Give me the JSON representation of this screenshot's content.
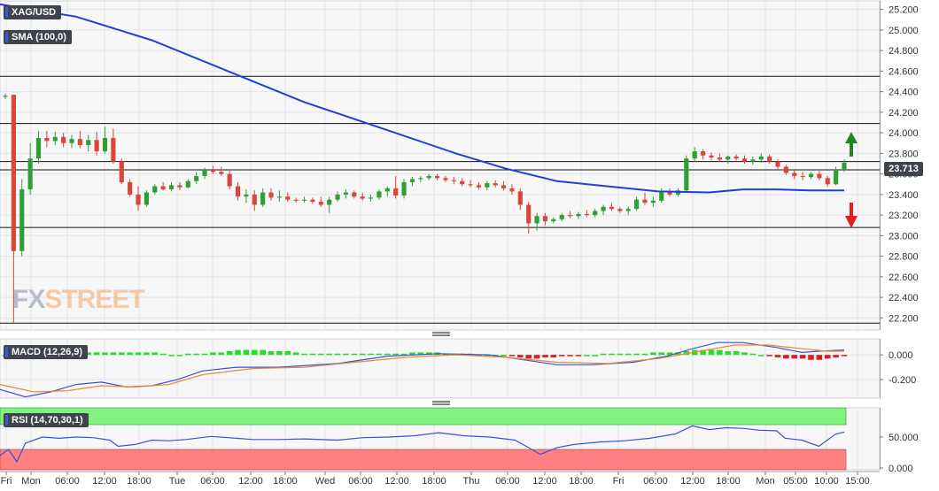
{
  "instrument": "XAG/USD",
  "price_tag": "23.713",
  "colors": {
    "up": "#2e9e35",
    "down": "#d9463a",
    "sma": "#1f3fd6",
    "macd_line": "#3355dd",
    "signal_line": "#ee8833",
    "rsi_line": "#3355dd",
    "rsi_overbought": "#7ff27f",
    "rsi_oversold": "#ff8080",
    "arrow_up": "#1e8a1e",
    "arrow_down": "#e41d1d"
  },
  "panels": {
    "price": {
      "label": "SMA (100,0)"
    },
    "macd": {
      "label": "MACD (12,26,9)"
    },
    "rsi": {
      "label": "RSI (14,70,30,1)"
    }
  },
  "chart_data": [
    {
      "type": "candlestick",
      "title": "XAG/USD",
      "ylim": [
        22.1,
        25.3
      ],
      "y_ticks": [
        "25.200",
        "25.000",
        "24.800",
        "24.600",
        "24.400",
        "24.200",
        "24.000",
        "23.800",
        "23.600",
        "23.400",
        "23.200",
        "23.000",
        "22.800",
        "22.600",
        "22.400",
        "22.200"
      ],
      "x_ticks": [
        "Fri",
        "Mon",
        "06:00",
        "12:00",
        "18:00",
        "Tue",
        "06:00",
        "12:00",
        "18:00",
        "Wed",
        "06:00",
        "12:00",
        "18:00",
        "Thu",
        "06:00",
        "12:00",
        "18:00",
        "Fri",
        "06:00",
        "12:00",
        "18:00",
        "Mon",
        "05:00",
        "10:00",
        "15:00"
      ],
      "last_price": 23.713,
      "horizontal_levels": [
        24.55,
        24.09,
        23.72,
        23.64,
        23.08,
        22.15
      ],
      "candles_ohlc": [
        [
          24.35,
          24.38,
          24.33,
          24.36
        ],
        [
          24.37,
          24.37,
          22.15,
          22.85
        ],
        [
          22.85,
          23.55,
          22.8,
          23.45
        ],
        [
          23.45,
          23.9,
          23.4,
          23.75
        ],
        [
          23.75,
          24.02,
          23.7,
          23.95
        ],
        [
          23.95,
          24.02,
          23.86,
          23.92
        ],
        [
          23.92,
          24.01,
          23.88,
          23.96
        ],
        [
          23.96,
          24.0,
          23.86,
          23.9
        ],
        [
          23.9,
          23.98,
          23.85,
          23.94
        ],
        [
          23.94,
          24.02,
          23.85,
          23.88
        ],
        [
          23.88,
          23.98,
          23.82,
          23.93
        ],
        [
          23.93,
          24.01,
          23.78,
          23.82
        ],
        [
          23.82,
          24.06,
          23.8,
          23.95
        ],
        [
          23.95,
          24.04,
          23.7,
          23.72
        ],
        [
          23.72,
          23.75,
          23.5,
          23.52
        ],
        [
          23.52,
          23.55,
          23.38,
          23.4
        ],
        [
          23.4,
          23.48,
          23.24,
          23.3
        ],
        [
          23.3,
          23.44,
          23.28,
          23.42
        ],
        [
          23.42,
          23.5,
          23.4,
          23.48
        ],
        [
          23.48,
          23.52,
          23.44,
          23.45
        ],
        [
          23.45,
          23.52,
          23.43,
          23.49
        ],
        [
          23.49,
          23.52,
          23.44,
          23.47
        ],
        [
          23.47,
          23.55,
          23.46,
          23.53
        ],
        [
          23.53,
          23.62,
          23.5,
          23.58
        ],
        [
          23.58,
          23.66,
          23.55,
          23.64
        ],
        [
          23.64,
          23.68,
          23.6,
          23.62
        ],
        [
          23.62,
          23.67,
          23.58,
          23.6
        ],
        [
          23.6,
          23.64,
          23.45,
          23.48
        ],
        [
          23.48,
          23.52,
          23.34,
          23.38
        ],
        [
          23.38,
          23.45,
          23.32,
          23.4
        ],
        [
          23.4,
          23.44,
          23.24,
          23.3
        ],
        [
          23.3,
          23.46,
          23.28,
          23.42
        ],
        [
          23.42,
          23.46,
          23.34,
          23.37
        ],
        [
          23.37,
          23.44,
          23.33,
          23.38
        ],
        [
          23.38,
          23.42,
          23.33,
          23.35
        ],
        [
          23.35,
          23.37,
          23.32,
          23.34
        ],
        [
          23.34,
          23.38,
          23.32,
          23.35
        ],
        [
          23.35,
          23.37,
          23.31,
          23.33
        ],
        [
          23.33,
          23.38,
          23.28,
          23.3
        ],
        [
          23.3,
          23.38,
          23.22,
          23.35
        ],
        [
          23.35,
          23.43,
          23.33,
          23.4
        ],
        [
          23.4,
          23.45,
          23.36,
          23.42
        ],
        [
          23.42,
          23.44,
          23.36,
          23.38
        ],
        [
          23.38,
          23.42,
          23.34,
          23.36
        ],
        [
          23.36,
          23.4,
          23.33,
          23.37
        ],
        [
          23.37,
          23.45,
          23.35,
          23.43
        ],
        [
          23.43,
          23.48,
          23.38,
          23.46
        ],
        [
          23.46,
          23.58,
          23.36,
          23.39
        ],
        [
          23.39,
          23.55,
          23.36,
          23.52
        ],
        [
          23.52,
          23.57,
          23.48,
          23.55
        ],
        [
          23.55,
          23.58,
          23.52,
          23.56
        ],
        [
          23.56,
          23.6,
          23.54,
          23.58
        ],
        [
          23.58,
          23.6,
          23.54,
          23.56
        ],
        [
          23.56,
          23.58,
          23.52,
          23.54
        ],
        [
          23.54,
          23.57,
          23.5,
          23.53
        ],
        [
          23.53,
          23.56,
          23.48,
          23.5
        ],
        [
          23.5,
          23.54,
          23.47,
          23.49
        ],
        [
          23.49,
          23.52,
          23.45,
          23.47
        ],
        [
          23.47,
          23.53,
          23.44,
          23.51
        ],
        [
          23.51,
          23.54,
          23.47,
          23.49
        ],
        [
          23.49,
          23.53,
          23.44,
          23.46
        ],
        [
          23.46,
          23.5,
          23.4,
          23.43
        ],
        [
          23.43,
          23.46,
          23.25,
          23.3
        ],
        [
          23.3,
          23.33,
          23.02,
          23.12
        ],
        [
          23.12,
          23.22,
          23.05,
          23.19
        ],
        [
          23.19,
          23.22,
          23.1,
          23.14
        ],
        [
          23.14,
          23.18,
          23.12,
          23.16
        ],
        [
          23.16,
          23.22,
          23.14,
          23.2
        ],
        [
          23.2,
          23.24,
          23.17,
          23.19
        ],
        [
          23.19,
          23.23,
          23.16,
          23.21
        ],
        [
          23.21,
          23.25,
          23.18,
          23.2
        ],
        [
          23.2,
          23.26,
          23.18,
          23.24
        ],
        [
          23.24,
          23.3,
          23.2,
          23.28
        ],
        [
          23.28,
          23.32,
          23.24,
          23.26
        ],
        [
          23.26,
          23.28,
          23.22,
          23.24
        ],
        [
          23.24,
          23.28,
          23.2,
          23.26
        ],
        [
          23.26,
          23.38,
          23.24,
          23.35
        ],
        [
          23.35,
          23.42,
          23.3,
          23.32
        ],
        [
          23.32,
          23.38,
          23.28,
          23.34
        ],
        [
          23.34,
          23.46,
          23.32,
          23.42
        ],
        [
          23.42,
          23.46,
          23.38,
          23.4
        ],
        [
          23.4,
          23.46,
          23.38,
          23.44
        ],
        [
          23.44,
          23.78,
          23.42,
          23.75
        ],
        [
          23.75,
          23.86,
          23.72,
          23.82
        ],
        [
          23.82,
          23.84,
          23.74,
          23.78
        ],
        [
          23.78,
          23.81,
          23.73,
          23.76
        ],
        [
          23.76,
          23.8,
          23.72,
          23.74
        ],
        [
          23.74,
          23.78,
          23.7,
          23.77
        ],
        [
          23.77,
          23.79,
          23.73,
          23.75
        ],
        [
          23.75,
          23.78,
          23.7,
          23.72
        ],
        [
          23.72,
          23.77,
          23.69,
          23.74
        ],
        [
          23.74,
          23.8,
          23.71,
          23.77
        ],
        [
          23.77,
          23.79,
          23.7,
          23.72
        ],
        [
          23.72,
          23.74,
          23.64,
          23.67
        ],
        [
          23.67,
          23.69,
          23.59,
          23.61
        ],
        [
          23.61,
          23.64,
          23.55,
          23.58
        ],
        [
          23.58,
          23.62,
          23.54,
          23.57
        ],
        [
          23.57,
          23.62,
          23.55,
          23.6
        ],
        [
          23.6,
          23.63,
          23.54,
          23.56
        ],
        [
          23.56,
          23.58,
          23.48,
          23.5
        ],
        [
          23.5,
          23.67,
          23.49,
          23.64
        ],
        [
          23.64,
          23.74,
          23.62,
          23.71
        ]
      ],
      "sma_100": [
        [
          0,
          25.25
        ],
        [
          0.09,
          25.13
        ],
        [
          0.18,
          24.9
        ],
        [
          0.27,
          24.6
        ],
        [
          0.36,
          24.3
        ],
        [
          0.45,
          24.05
        ],
        [
          0.54,
          23.8
        ],
        [
          0.6,
          23.65
        ],
        [
          0.66,
          23.53
        ],
        [
          0.72,
          23.48
        ],
        [
          0.78,
          23.43
        ],
        [
          0.84,
          23.42
        ],
        [
          0.88,
          23.45
        ],
        [
          0.92,
          23.45
        ],
        [
          0.96,
          23.44
        ],
        [
          1.0,
          23.44
        ]
      ]
    },
    {
      "type": "macd",
      "title": "MACD (12,26,9)",
      "ylim": [
        -0.35,
        0.13
      ],
      "y_ticks": [
        "0.000",
        "-0.200"
      ],
      "histogram": [
        0.0,
        0.01,
        0.01,
        0.02,
        0.02,
        0.02,
        0.02,
        0.02,
        0.02,
        0.02,
        0.02,
        0.02,
        0.02,
        0.02,
        0.02,
        0.02,
        0.02,
        0.02,
        0.02,
        0.01,
        0.0,
        0.0,
        0.01,
        0.01,
        0.01,
        0.02,
        0.02,
        0.03,
        0.04,
        0.04,
        0.04,
        0.04,
        0.03,
        0.03,
        0.03,
        0.02,
        0.01,
        0.01,
        0.01,
        0.01,
        0.01,
        0.01,
        0.01,
        0.01,
        0.01,
        0.01,
        0.01,
        0.01,
        0.01,
        0.02,
        0.02,
        0.02,
        0.02,
        0.01,
        0.01,
        0.01,
        0.01,
        0.0,
        0.0,
        0.0,
        0.0,
        -0.01,
        -0.02,
        -0.03,
        -0.03,
        -0.02,
        -0.02,
        -0.01,
        -0.01,
        -0.01,
        0.0,
        0.0,
        0.01,
        0.01,
        0.01,
        0.01,
        0.01,
        0.01,
        0.02,
        0.02,
        0.02,
        0.02,
        0.03,
        0.04,
        0.04,
        0.04,
        0.04,
        0.03,
        0.03,
        0.02,
        0.01,
        0.0,
        -0.01,
        -0.02,
        -0.03,
        -0.03,
        -0.03,
        -0.04,
        -0.04,
        -0.03,
        -0.02,
        -0.01
      ],
      "macd": [
        [
          0,
          -0.28
        ],
        [
          0.03,
          -0.34
        ],
        [
          0.06,
          -0.3
        ],
        [
          0.09,
          -0.24
        ],
        [
          0.12,
          -0.22
        ],
        [
          0.15,
          -0.26
        ],
        [
          0.18,
          -0.25
        ],
        [
          0.21,
          -0.2
        ],
        [
          0.24,
          -0.13
        ],
        [
          0.28,
          -0.1
        ],
        [
          0.33,
          -0.1
        ],
        [
          0.4,
          -0.07
        ],
        [
          0.46,
          -0.01
        ],
        [
          0.52,
          0.01
        ],
        [
          0.58,
          0.0
        ],
        [
          0.62,
          -0.04
        ],
        [
          0.66,
          -0.08
        ],
        [
          0.7,
          -0.08
        ],
        [
          0.75,
          -0.06
        ],
        [
          0.79,
          -0.01
        ],
        [
          0.82,
          0.05
        ],
        [
          0.85,
          0.1
        ],
        [
          0.88,
          0.1
        ],
        [
          0.92,
          0.06
        ],
        [
          0.95,
          0.02
        ],
        [
          0.97,
          0.03
        ],
        [
          1.0,
          0.04
        ]
      ],
      "signal": [
        [
          0,
          -0.24
        ],
        [
          0.04,
          -0.3
        ],
        [
          0.08,
          -0.29
        ],
        [
          0.12,
          -0.25
        ],
        [
          0.16,
          -0.26
        ],
        [
          0.2,
          -0.24
        ],
        [
          0.24,
          -0.16
        ],
        [
          0.3,
          -0.11
        ],
        [
          0.36,
          -0.1
        ],
        [
          0.42,
          -0.06
        ],
        [
          0.48,
          -0.02
        ],
        [
          0.54,
          0.0
        ],
        [
          0.6,
          -0.02
        ],
        [
          0.66,
          -0.06
        ],
        [
          0.72,
          -0.07
        ],
        [
          0.78,
          -0.03
        ],
        [
          0.83,
          0.03
        ],
        [
          0.87,
          0.08
        ],
        [
          0.91,
          0.08
        ],
        [
          0.95,
          0.05
        ],
        [
          0.98,
          0.03
        ],
        [
          1.0,
          0.03
        ]
      ]
    },
    {
      "type": "rsi",
      "title": "RSI (14,70,30,1)",
      "ylim": [
        0,
        100
      ],
      "y_ticks": [
        "50.000",
        "0.000"
      ],
      "overbought": 70,
      "oversold": 30,
      "values": [
        [
          0,
          20
        ],
        [
          0.01,
          30
        ],
        [
          0.02,
          10
        ],
        [
          0.03,
          40
        ],
        [
          0.05,
          50
        ],
        [
          0.07,
          48
        ],
        [
          0.09,
          50
        ],
        [
          0.11,
          49
        ],
        [
          0.13,
          45
        ],
        [
          0.14,
          35
        ],
        [
          0.16,
          38
        ],
        [
          0.18,
          45
        ],
        [
          0.2,
          44
        ],
        [
          0.22,
          46
        ],
        [
          0.25,
          51
        ],
        [
          0.28,
          48
        ],
        [
          0.3,
          46
        ],
        [
          0.33,
          46
        ],
        [
          0.36,
          47
        ],
        [
          0.4,
          45
        ],
        [
          0.43,
          49
        ],
        [
          0.46,
          50
        ],
        [
          0.49,
          52
        ],
        [
          0.52,
          57
        ],
        [
          0.55,
          52
        ],
        [
          0.58,
          50
        ],
        [
          0.61,
          45
        ],
        [
          0.63,
          30
        ],
        [
          0.64,
          22
        ],
        [
          0.66,
          33
        ],
        [
          0.68,
          38
        ],
        [
          0.71,
          42
        ],
        [
          0.74,
          44
        ],
        [
          0.77,
          48
        ],
        [
          0.8,
          55
        ],
        [
          0.82,
          68
        ],
        [
          0.84,
          62
        ],
        [
          0.86,
          65
        ],
        [
          0.88,
          64
        ],
        [
          0.9,
          61
        ],
        [
          0.92,
          60
        ],
        [
          0.93,
          48
        ],
        [
          0.95,
          45
        ],
        [
          0.96,
          40
        ],
        [
          0.97,
          35
        ],
        [
          0.98,
          45
        ],
        [
          0.99,
          55
        ],
        [
          1.0,
          58
        ]
      ]
    }
  ],
  "watermark": {
    "fx": "FX",
    "street": "STREET"
  }
}
